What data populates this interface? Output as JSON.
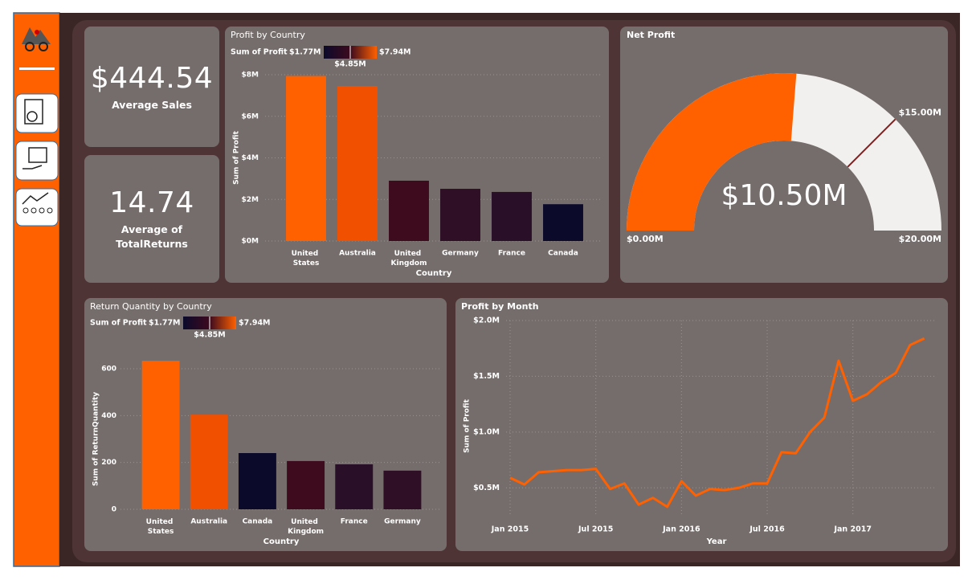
{
  "cards": [
    {
      "value": "$444.54",
      "label": "Average Sales"
    },
    {
      "value": "14.74",
      "label": "Average of TotalReturns"
    }
  ],
  "chart_data": [
    {
      "type": "bar",
      "title": "Profit by Country",
      "x_label": "Country",
      "y_label": "Sum of Profit",
      "legend": {
        "title": "Sum of Profit",
        "min_label": "$1.77M",
        "mid_label": "$4.85M",
        "max_label": "$7.94M",
        "gradient": [
          "#0b0a2b",
          "#3d0a1e",
          "#ff6000"
        ]
      },
      "categories": [
        "United States",
        "Australia",
        "United Kingdom",
        "Germany",
        "France",
        "Canada"
      ],
      "values": [
        7940000,
        7460000,
        2900000,
        2510000,
        2360000,
        1770000
      ],
      "colors": [
        "#ff6000",
        "#f05000",
        "#3d0a1e",
        "#2e0f25",
        "#2a0f28",
        "#0b0a2b"
      ],
      "ylim": [
        0,
        8000000
      ],
      "yticks": [
        {
          "value": 0,
          "label": "$0M"
        },
        {
          "value": 2000000,
          "label": "$2M"
        },
        {
          "value": 4000000,
          "label": "$4M"
        },
        {
          "value": 6000000,
          "label": "$6M"
        },
        {
          "value": 8000000,
          "label": "$8M"
        }
      ],
      "grid": true
    },
    {
      "type": "gauge",
      "title": "Net Profit",
      "value": 10500000,
      "value_label": "$10.50M",
      "ylim": [
        0,
        20000000
      ],
      "min_label": "$0.00M",
      "max_label": "$20.00M",
      "target": 15000000,
      "target_label": "$15.00M",
      "color": "#ff6000",
      "track_color": "#f2f0ef",
      "target_color": "#8b1a1a"
    },
    {
      "type": "bar",
      "title": "Return Quantity by Country",
      "x_label": "Country",
      "y_label": "Sum of ReturnQuantity",
      "legend": {
        "title": "Sum of Profit",
        "min_label": "$1.77M",
        "mid_label": "$4.85M",
        "max_label": "$7.94M",
        "gradient": [
          "#0b0a2b",
          "#3d0a1e",
          "#ff6000"
        ]
      },
      "categories": [
        "United States",
        "Australia",
        "Canada",
        "United Kingdom",
        "France",
        "Germany"
      ],
      "values": [
        634,
        404,
        240,
        206,
        192,
        165
      ],
      "colors": [
        "#ff6000",
        "#f05000",
        "#0b0a2b",
        "#3d0a1e",
        "#2a0f28",
        "#2e0f25"
      ],
      "ylim": [
        0,
        600
      ],
      "yticks": [
        0,
        200,
        400,
        600
      ],
      "grid": true
    },
    {
      "type": "line",
      "title": "Profit by Month",
      "x_label": "Year",
      "y_label": "Sum of Profit",
      "color": "#ff6000",
      "x": [
        "2015-01",
        "2015-02",
        "2015-03",
        "2015-04",
        "2015-05",
        "2015-06",
        "2015-07",
        "2015-08",
        "2015-09",
        "2015-10",
        "2015-11",
        "2015-12",
        "2016-01",
        "2016-02",
        "2016-03",
        "2016-04",
        "2016-05",
        "2016-06",
        "2016-07",
        "2016-08",
        "2016-09",
        "2016-10",
        "2016-11",
        "2016-12",
        "2017-01",
        "2017-02",
        "2017-03",
        "2017-04",
        "2017-05",
        "2017-06"
      ],
      "values": [
        590000,
        530000,
        640000,
        650000,
        660000,
        660000,
        670000,
        490000,
        540000,
        350000,
        410000,
        330000,
        560000,
        430000,
        490000,
        480000,
        500000,
        540000,
        540000,
        820000,
        810000,
        1000000,
        1130000,
        1640000,
        1280000,
        1340000,
        1450000,
        1530000,
        1780000,
        1840000
      ],
      "xticks": [
        {
          "value": "2015-01",
          "label": "Jan 2015"
        },
        {
          "value": "2015-07",
          "label": "Jul 2015"
        },
        {
          "value": "2016-01",
          "label": "Jan 2016"
        },
        {
          "value": "2016-07",
          "label": "Jul 2016"
        },
        {
          "value": "2017-01",
          "label": "Jan 2017"
        }
      ],
      "ylim": [
        250000,
        2000000
      ],
      "yticks": [
        {
          "value": 500000,
          "label": "$0.5M"
        },
        {
          "value": 1000000,
          "label": "$1.0M"
        },
        {
          "value": 1500000,
          "label": "$1.5M"
        },
        {
          "value": 2000000,
          "label": "$2.0M"
        }
      ],
      "grid": true
    }
  ]
}
